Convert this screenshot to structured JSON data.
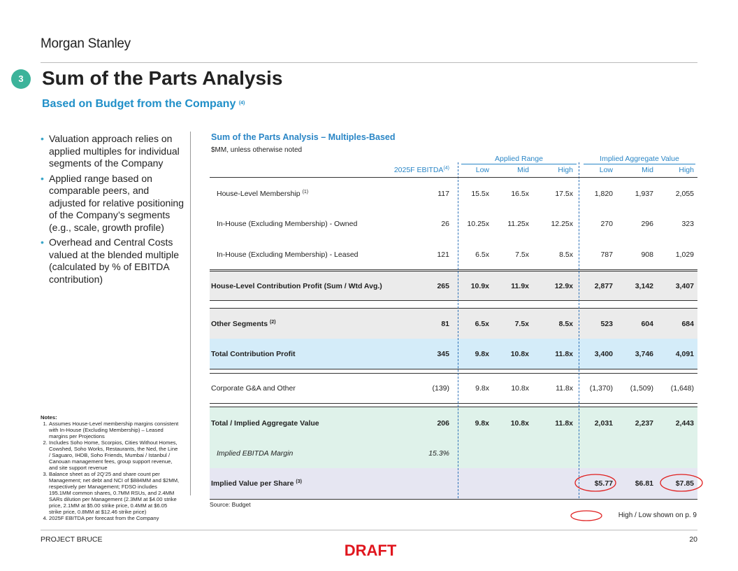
{
  "header": {
    "logo": "Morgan Stanley",
    "section_number": "3",
    "title": "Sum of the Parts Analysis",
    "subtitle": "Based on Budget from the Company",
    "subtitle_note": "(4)"
  },
  "bullets": [
    "Valuation approach relies on applied multiples for individual segments of the Company",
    "Applied range based on comparable peers, and adjusted for relative positioning of the Company’s segments (e.g., scale, growth profile)",
    "Overhead and Central Costs valued at the blended multiple (calculated by % of EBITDA contribution)"
  ],
  "notes": {
    "heading": "Notes:",
    "items": [
      "Assumes House-Level membership margins consistent with In-House (Excluding Membership) – Leased margins per Projections",
      "Includes Soho Home, Scorpios, Cities Without Homes, Cowshed, Soho Works, Restaurants, the Ned, the Line / Saguaro, IHDB, Soho Friends, Mumbai / Istanbul / Canouan management fees, group support revenue, and site support revenue",
      "Balance sheet as of 2Q’25 and share count per Management; net debt and NCI of $884MM and $2MM, respectively per Management; FDSO includes 195.1MM common shares, 0.7MM RSUs, and 2.4MM SARs dilution per Management (2.3MM at $4.00 strike price, 2.1MM at $5.00 strike price, 0.4MM at $6.05 strike price, 0.8MM at $12.46 strike price)",
      "2025F EBITDA per forecast from the Company"
    ]
  },
  "table": {
    "title": "Sum of the Parts Analysis – Multiples-Based",
    "unit": "$MM, unless otherwise noted",
    "group_headers": [
      "Applied Range",
      "Implied Aggregate Value"
    ],
    "columns": [
      "2025F EBITDA",
      "Low",
      "Mid",
      "High",
      "Low",
      "Mid",
      "High"
    ],
    "column_note": "(4)",
    "rows": [
      {
        "label": "House-Level Membership",
        "note": "(1)",
        "cells": [
          "117",
          "15.5x",
          "16.5x",
          "17.5x",
          "1,820",
          "1,937",
          "2,055"
        ]
      },
      {
        "label": "In-House (Excluding Membership) - Owned",
        "cells": [
          "26",
          "10.25x",
          "11.25x",
          "12.25x",
          "270",
          "296",
          "323"
        ]
      },
      {
        "label": "In-House (Excluding Membership) - Leased",
        "cells": [
          "121",
          "6.5x",
          "7.5x",
          "8.5x",
          "787",
          "908",
          "1,029"
        ]
      },
      {
        "label": "House-Level Contribution Profit (Sum / Wtd Avg.)",
        "cells": [
          "265",
          "10.9x",
          "11.9x",
          "12.9x",
          "2,877",
          "3,142",
          "3,407"
        ]
      },
      {
        "label": "Other Segments",
        "note": "(2)",
        "cells": [
          "81",
          "6.5x",
          "7.5x",
          "8.5x",
          "523",
          "604",
          "684"
        ]
      },
      {
        "label": "Total Contribution Profit",
        "cells": [
          "345",
          "9.8x",
          "10.8x",
          "11.8x",
          "3,400",
          "3,746",
          "4,091"
        ]
      },
      {
        "label": "Corporate G&A and Other",
        "cells": [
          "(139)",
          "9.8x",
          "10.8x",
          "11.8x",
          "(1,370)",
          "(1,509)",
          "(1,648)"
        ]
      },
      {
        "label": "Total / Implied Aggregate Value",
        "cells": [
          "206",
          "9.8x",
          "10.8x",
          "11.8x",
          "2,031",
          "2,237",
          "2,443"
        ]
      },
      {
        "label": "Implied EBITDA Margin",
        "cells": [
          "15.3%"
        ]
      },
      {
        "label": "Implied Value per Share",
        "note": "(3)",
        "cells": [
          "$5.77",
          "$6.81",
          "$7.85"
        ]
      }
    ],
    "source": "Source: Budget"
  },
  "legend": "High / Low shown on p. 9",
  "footer": {
    "project": "PROJECT BRUCE",
    "page": "20",
    "draft": "DRAFT"
  }
}
